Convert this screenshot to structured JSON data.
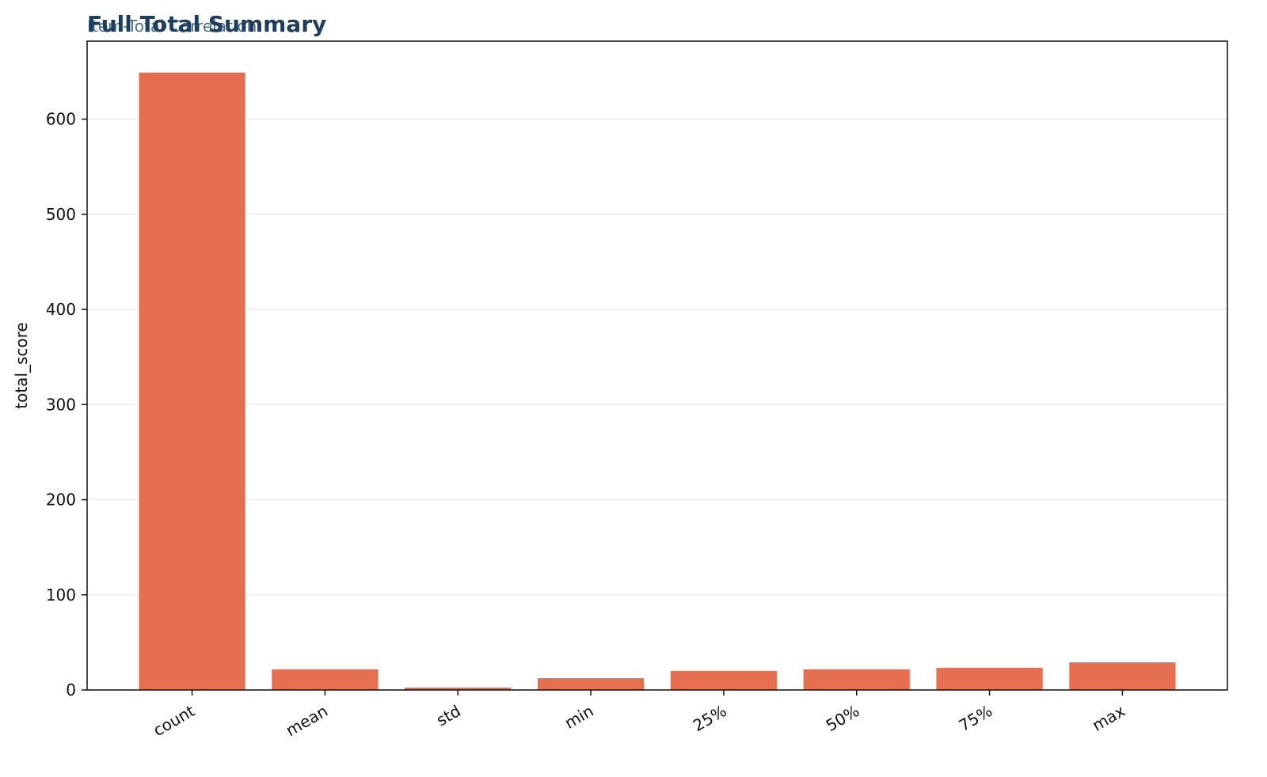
{
  "chart_data": {
    "type": "bar",
    "title": "Full Total Summary",
    "subtitle": "Item-Total Correlation",
    "y_label": "total_score",
    "categories": [
      "count",
      "mean",
      "std",
      "min",
      "25%",
      "50%",
      "75%",
      "max"
    ],
    "values": [
      649,
      21.6,
      2.5,
      12.4,
      20,
      21.6,
      23.3,
      29
    ],
    "color": "#e76f51",
    "ylim": [
      0,
      682
    ],
    "yticks": [
      0,
      100,
      200,
      300,
      400,
      500,
      600
    ],
    "grid": true
  }
}
